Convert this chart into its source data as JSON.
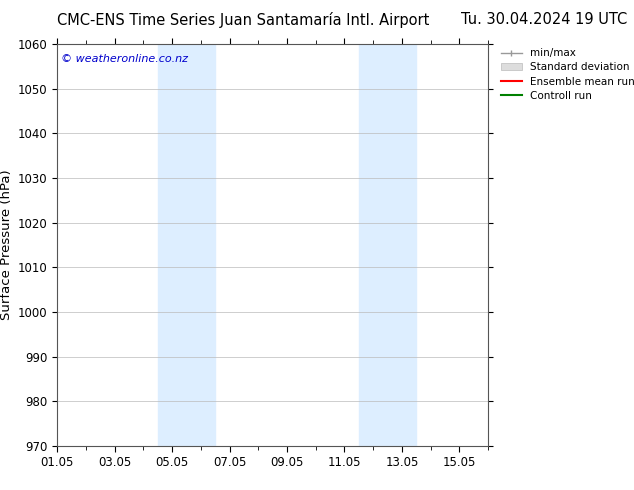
{
  "title_left": "CMC-ENS Time Series Juan Santamaría Intl. Airport",
  "title_right": "Tu. 30.04.2024 19 UTC",
  "ylabel": "Surface Pressure (hPa)",
  "xlabel": "",
  "watermark": "© weatheronline.co.nz",
  "watermark_color": "#0000cc",
  "ylim": [
    970,
    1060
  ],
  "yticks": [
    970,
    980,
    990,
    1000,
    1010,
    1020,
    1030,
    1040,
    1050,
    1060
  ],
  "xlim_start": 0,
  "xlim_end": 15,
  "xtick_labels": [
    "01.05",
    "03.05",
    "05.05",
    "07.05",
    "09.05",
    "11.05",
    "13.05",
    "15.05"
  ],
  "xtick_positions": [
    0,
    2,
    4,
    6,
    8,
    10,
    12,
    14
  ],
  "shaded_bands": [
    {
      "x_start": 3.5,
      "x_end": 5.5
    },
    {
      "x_start": 10.5,
      "x_end": 12.5
    }
  ],
  "shade_color": "#ddeeff",
  "grid_color": "#bbbbbb",
  "background_color": "#ffffff",
  "legend_items": [
    {
      "label": "min/max",
      "color": "#aaaaaa",
      "lw": 1.2
    },
    {
      "label": "Standard deviation",
      "color": "#cccccc",
      "lw": 6
    },
    {
      "label": "Ensemble mean run",
      "color": "#ff0000",
      "lw": 1.5
    },
    {
      "label": "Controll run",
      "color": "#008000",
      "lw": 1.5
    }
  ],
  "title_fontsize": 10.5,
  "tick_fontsize": 8.5,
  "ylabel_fontsize": 9.5,
  "legend_fontsize": 7.5
}
